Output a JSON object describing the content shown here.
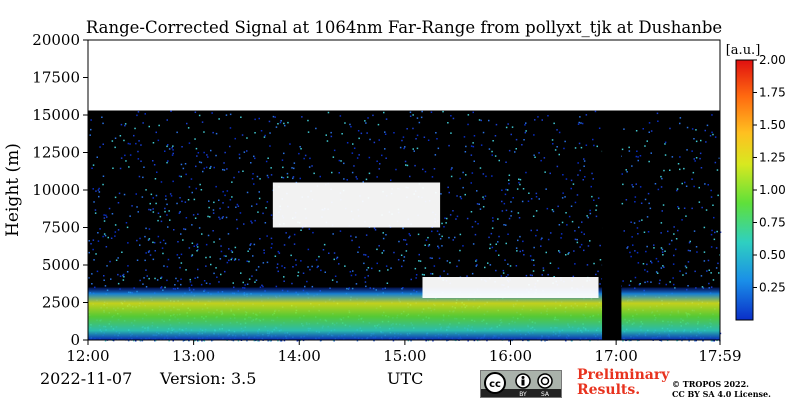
{
  "chart_data": {
    "type": "heatmap",
    "title": "Range-Corrected Signal at 1064nm Far-Range from pollyxt_tjk at Dushanbe",
    "xlabel": "",
    "ylabel": "Height (m)",
    "x_tick_labels": [
      "12:00",
      "13:00",
      "14:00",
      "15:00",
      "16:00",
      "17:00",
      "17:59"
    ],
    "x_range": [
      "12:00",
      "17:59"
    ],
    "y_ticks": [
      0,
      2500,
      5000,
      7500,
      10000,
      12500,
      15000,
      17500,
      20000
    ],
    "y_tick_labels": [
      "0",
      "2500",
      "5000",
      "7500",
      "10000",
      "12500",
      "15000",
      "17500",
      "20000"
    ],
    "ylim": [
      0,
      20000
    ],
    "data_top": 15300,
    "colorbar": {
      "unit": "[a.u.]",
      "range": [
        0,
        2.0
      ],
      "ticks": [
        0.25,
        0.5,
        0.75,
        1.0,
        1.25,
        1.5,
        1.75,
        2.0
      ],
      "tick_labels": [
        "0.25",
        "0.50",
        "0.75",
        "1.00",
        "1.25",
        "1.50",
        "1.75",
        "2.00"
      ],
      "colormap": [
        "#0a2ec8",
        "#1a8ee8",
        "#2fd0c0",
        "#5fe03a",
        "#d8e820",
        "#ffc020",
        "#ff6a10",
        "#e01010"
      ]
    },
    "features": [
      {
        "type": "aerosol_layer",
        "from": "12:00",
        "to": "17:59",
        "base": 0,
        "top": 3500
      },
      {
        "type": "cloud",
        "from": "13:45",
        "to": "15:20",
        "base": 7500,
        "top": 10500
      },
      {
        "type": "cloud",
        "from": "15:10",
        "to": "16:50",
        "base": 2800,
        "top": 4200
      },
      {
        "type": "no_data",
        "from": "16:52",
        "to": "17:03"
      }
    ]
  },
  "footer": {
    "date": "2022-11-07",
    "version": "Version: 3.5",
    "utc": "UTC",
    "preliminary_line1": "Preliminary",
    "preliminary_line2": "Results.",
    "copyright_line1": "© TROPOS 2022.",
    "copyright_line2": "CC BY SA 4.0 License."
  }
}
